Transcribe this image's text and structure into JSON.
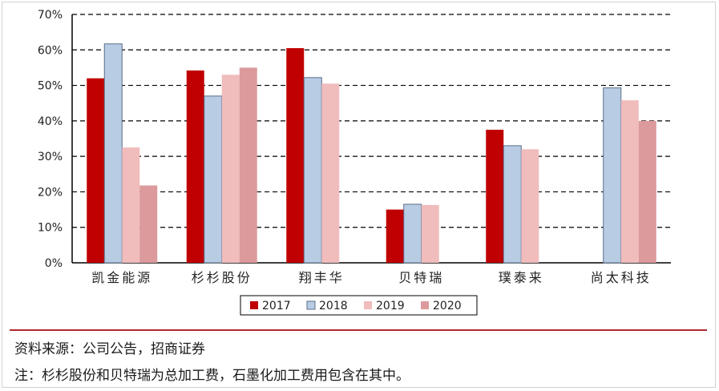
{
  "chart_data": {
    "type": "bar",
    "categories": [
      "凯金能源",
      "杉杉股份",
      "翔丰华",
      "贝特瑞",
      "璞泰来",
      "尚太科技"
    ],
    "series": [
      {
        "name": "2017",
        "color": "#c00000",
        "values": [
          52,
          54.2,
          60.5,
          15,
          37.5,
          null
        ]
      },
      {
        "name": "2018",
        "color": "#b8cce4",
        "values": [
          61.7,
          47,
          52.2,
          16.5,
          33,
          49.3
        ]
      },
      {
        "name": "2019",
        "color": "#f0bcbc",
        "values": [
          32.5,
          53,
          50.5,
          16.3,
          32,
          45.8
        ]
      },
      {
        "name": "2020",
        "color": "#dc9a9c",
        "values": [
          21.8,
          55,
          null,
          null,
          null,
          40
        ]
      }
    ],
    "y_ticks": [
      "0%",
      "10%",
      "20%",
      "30%",
      "40%",
      "50%",
      "60%",
      "70%"
    ],
    "ylim": [
      0,
      70
    ],
    "grid": "horizontal dashed",
    "legend_position": "bottom"
  },
  "footer": {
    "source": "资料来源：公司公告，招商证券",
    "note": "注：杉杉股份和贝特瑞为总加工费，石墨化加工费用包含在其中。"
  },
  "colors": {
    "divider": "#b0282e",
    "bar_outline": "#7f7f7f"
  }
}
